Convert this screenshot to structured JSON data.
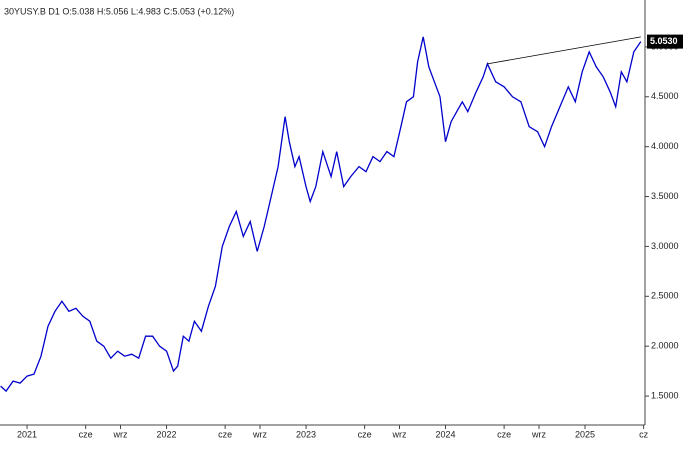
{
  "chart_data": {
    "type": "line",
    "title": "30YUSY.B  D1  O:5.038  H:5.056  L:4.983  C:5.053  (+0.12%)",
    "x": [
      2020.81,
      2020.85,
      2020.9,
      2020.95,
      2021.0,
      2021.05,
      2021.1,
      2021.15,
      2021.2,
      2021.25,
      2021.3,
      2021.35,
      2021.4,
      2021.45,
      2021.5,
      2021.55,
      2021.6,
      2021.65,
      2021.7,
      2021.75,
      2021.8,
      2021.85,
      2021.9,
      2021.95,
      2022.0,
      2022.05,
      2022.08,
      2022.12,
      2022.16,
      2022.2,
      2022.25,
      2022.3,
      2022.35,
      2022.4,
      2022.45,
      2022.5,
      2022.55,
      2022.6,
      2022.65,
      2022.7,
      2022.75,
      2022.8,
      2022.85,
      2022.88,
      2022.92,
      2022.95,
      2023.0,
      2023.03,
      2023.07,
      2023.12,
      2023.18,
      2023.22,
      2023.27,
      2023.32,
      2023.38,
      2023.43,
      2023.48,
      2023.53,
      2023.58,
      2023.63,
      2023.68,
      2023.72,
      2023.77,
      2023.8,
      2023.84,
      2023.88,
      2023.92,
      2023.96,
      2024.0,
      2024.04,
      2024.08,
      2024.12,
      2024.16,
      2024.22,
      2024.27,
      2024.3,
      2024.36,
      2024.42,
      2024.48,
      2024.54,
      2024.6,
      2024.66,
      2024.71,
      2024.76,
      2024.82,
      2024.88,
      2024.93,
      2024.98,
      2025.03,
      2025.08,
      2025.13,
      2025.18,
      2025.22,
      2025.26,
      2025.3,
      2025.35,
      2025.4
    ],
    "series": [
      {
        "name": "30YUSY.B",
        "color": "#0000cc",
        "values": [
          1.6,
          1.55,
          1.65,
          1.63,
          1.7,
          1.72,
          1.9,
          2.2,
          2.35,
          2.45,
          2.35,
          2.38,
          2.3,
          2.25,
          2.05,
          2.0,
          1.88,
          1.95,
          1.9,
          1.92,
          1.88,
          2.1,
          2.1,
          2.0,
          1.95,
          1.75,
          1.8,
          2.1,
          2.05,
          2.25,
          2.15,
          2.4,
          2.6,
          3.0,
          3.2,
          3.35,
          3.1,
          3.25,
          2.95,
          3.2,
          3.5,
          3.8,
          4.3,
          4.05,
          3.8,
          3.9,
          3.6,
          3.45,
          3.6,
          3.95,
          3.7,
          3.95,
          3.6,
          3.7,
          3.8,
          3.75,
          3.9,
          3.85,
          3.95,
          3.9,
          4.2,
          4.45,
          4.5,
          4.85,
          5.1,
          4.8,
          4.65,
          4.5,
          4.05,
          4.25,
          4.35,
          4.45,
          4.35,
          4.55,
          4.7,
          4.83,
          4.65,
          4.6,
          4.5,
          4.45,
          4.2,
          4.15,
          4.0,
          4.2,
          4.4,
          4.6,
          4.45,
          4.75,
          4.95,
          4.8,
          4.7,
          4.55,
          4.4,
          4.75,
          4.65,
          4.95,
          5.053
        ]
      }
    ],
    "last_price_label": "5.0530",
    "trendline": {
      "x": [
        2024.3,
        2025.4
      ],
      "y": [
        4.83,
        5.1
      ]
    },
    "xlim": [
      2020.806,
      2025.43
    ],
    "ylim": [
      1.21,
      5.47
    ],
    "xticks": [
      {
        "value": 2021.0,
        "label": "2021"
      },
      {
        "value": 2021.42,
        "label": "cze"
      },
      {
        "value": 2021.67,
        "label": "wrz"
      },
      {
        "value": 2022.0,
        "label": "2022"
      },
      {
        "value": 2022.42,
        "label": "cze"
      },
      {
        "value": 2022.67,
        "label": "wrz"
      },
      {
        "value": 2023.0,
        "label": "2023"
      },
      {
        "value": 2023.42,
        "label": "cze"
      },
      {
        "value": 2023.67,
        "label": "wrz"
      },
      {
        "value": 2024.0,
        "label": "2024"
      },
      {
        "value": 2024.42,
        "label": "cze"
      },
      {
        "value": 2024.67,
        "label": "wrz"
      },
      {
        "value": 2025.0,
        "label": "2025"
      },
      {
        "value": 2025.42,
        "label": "cz"
      }
    ],
    "yticks": [
      {
        "value": 1.5,
        "label": "1.5000"
      },
      {
        "value": 2.0,
        "label": "2.0000"
      },
      {
        "value": 2.5,
        "label": "2.5000"
      },
      {
        "value": 3.0,
        "label": "3.0000"
      },
      {
        "value": 3.5,
        "label": "3.5000"
      },
      {
        "value": 4.0,
        "label": "4.0000"
      },
      {
        "value": 4.5,
        "label": "4.5000"
      },
      {
        "value": 5.0,
        "label": "5.0000"
      }
    ],
    "grid": false
  }
}
